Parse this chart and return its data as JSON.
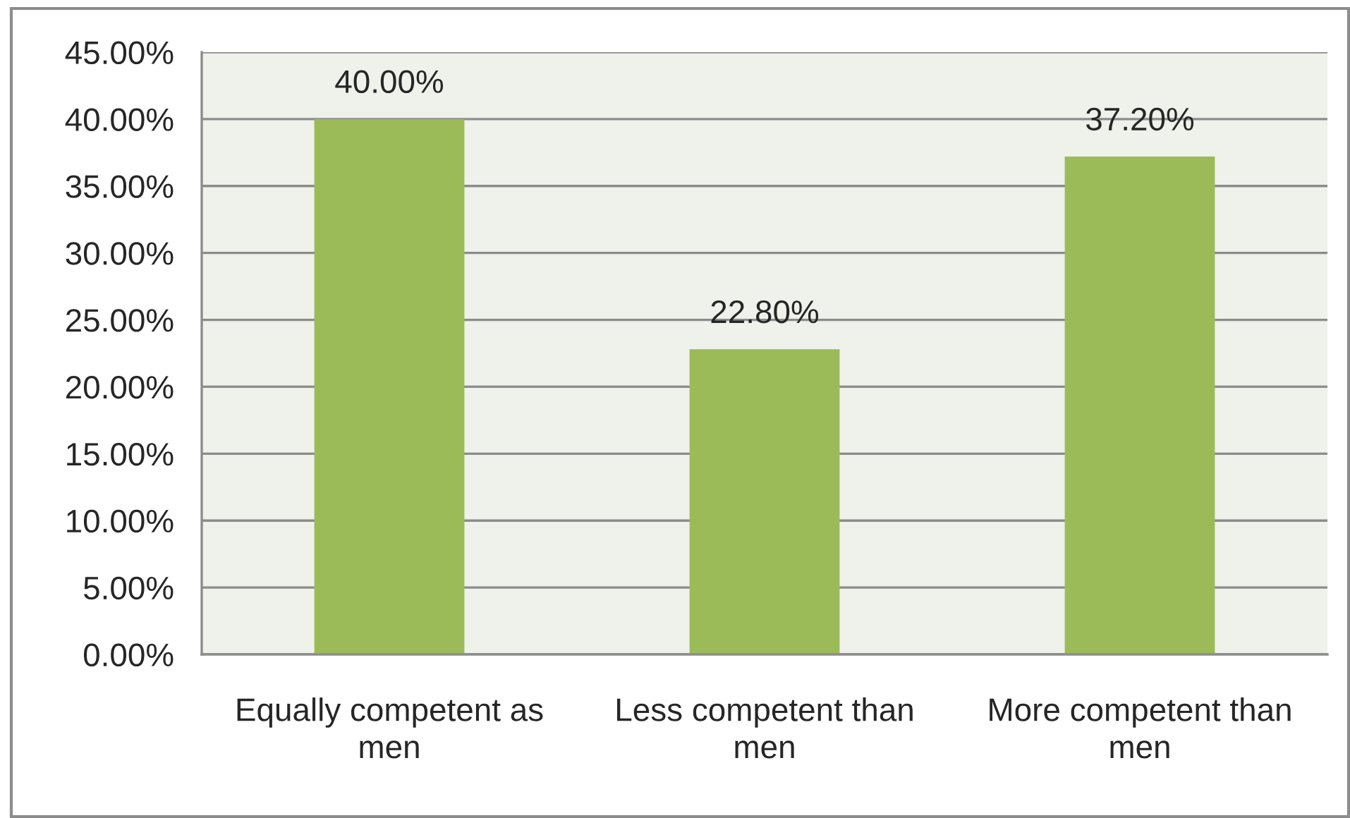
{
  "chart_data": {
    "type": "bar",
    "categories": [
      "Equally competent as men",
      "Less competent than men",
      "More competent than men"
    ],
    "values": [
      40,
      22.8,
      37.2
    ],
    "value_labels": [
      "40.00%",
      "22.80%",
      "37.20%"
    ],
    "color": "#9bbb59",
    "ylim": [
      0,
      45
    ],
    "yticks": [
      {
        "value": 0,
        "label": "0.00%"
      },
      {
        "value": 5,
        "label": "5.00%"
      },
      {
        "value": 10,
        "label": "10.00%"
      },
      {
        "value": 15,
        "label": "15.00%"
      },
      {
        "value": 20,
        "label": "20.00%"
      },
      {
        "value": 25,
        "label": "25.00%"
      },
      {
        "value": 30,
        "label": "30.00%"
      },
      {
        "value": 35,
        "label": "35.00%"
      },
      {
        "value": 40,
        "label": "40.00%"
      },
      {
        "value": 45,
        "label": "45.00%"
      }
    ],
    "grid": "y"
  }
}
